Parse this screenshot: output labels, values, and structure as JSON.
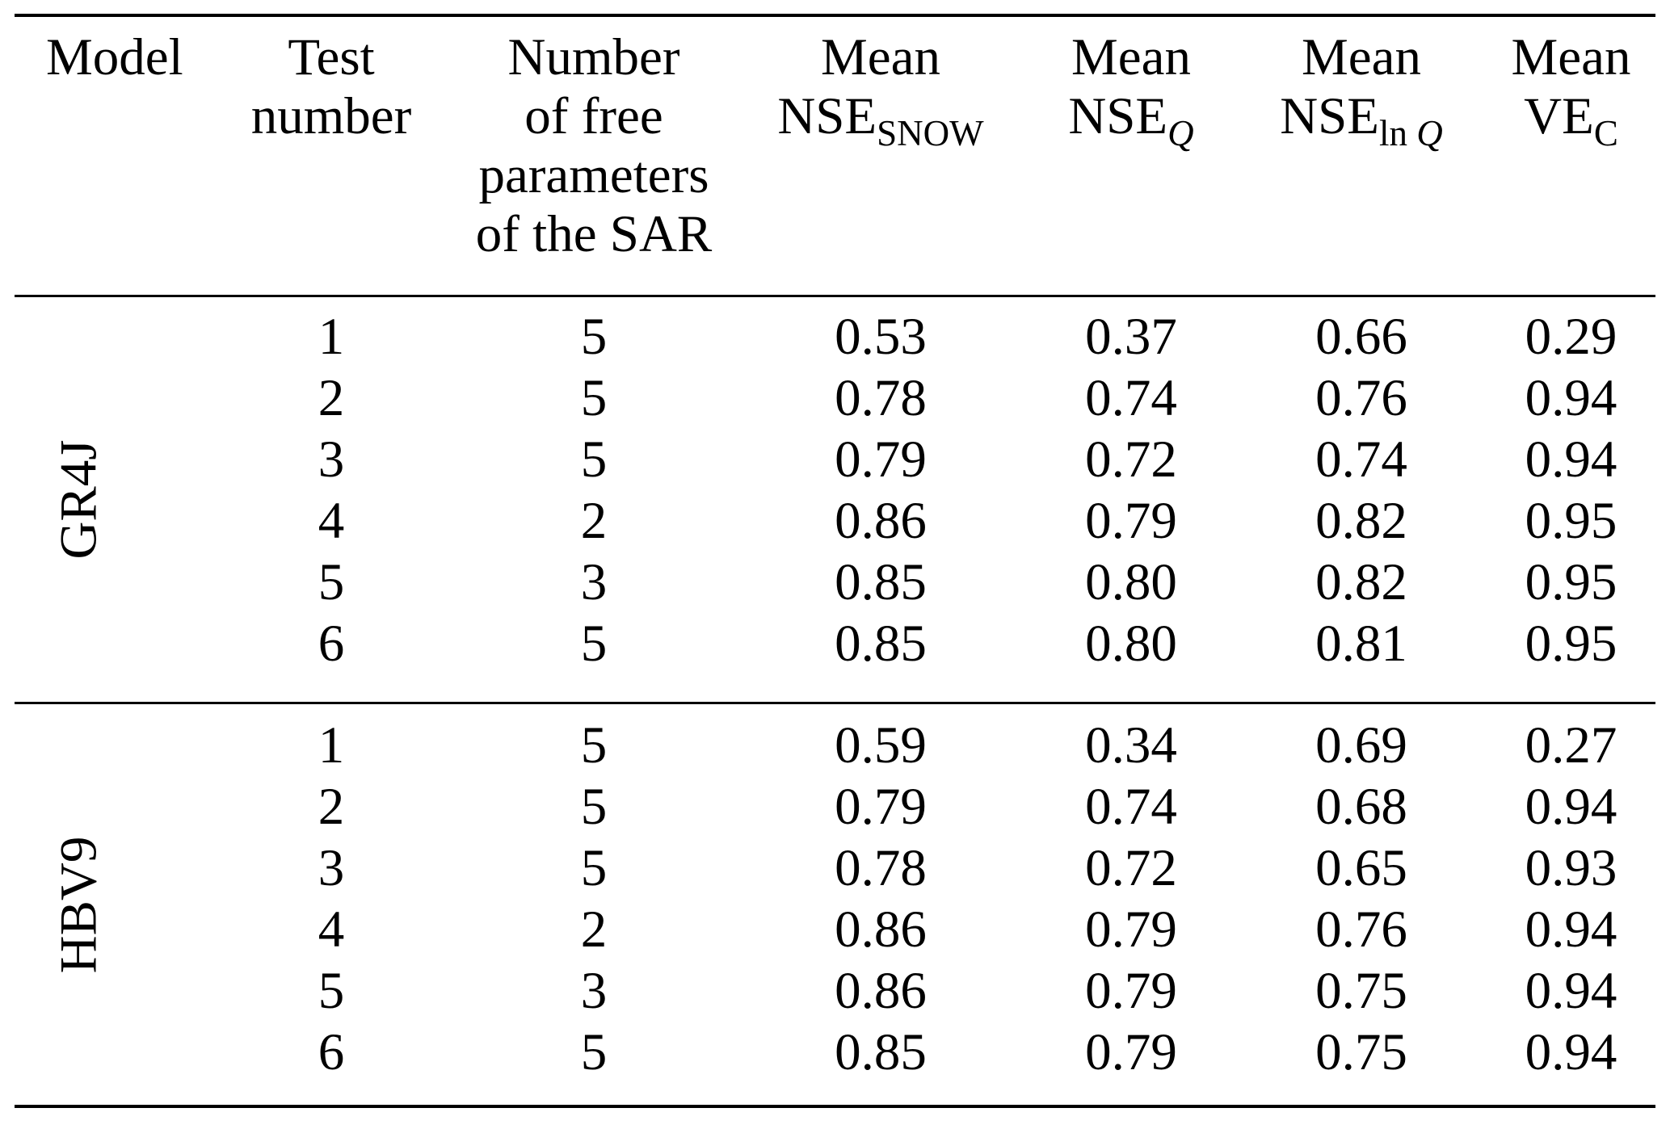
{
  "table": {
    "header": {
      "model": "Model",
      "test": {
        "line1": "Test",
        "line2": "number"
      },
      "params": {
        "line1": "Number",
        "line2": "of free",
        "line3": "parameters",
        "line4": "of the SAR"
      },
      "metrics": [
        {
          "line1": "Mean",
          "base": "NSE",
          "sub_roman": "SNOW",
          "sub_italic": ""
        },
        {
          "line1": "Mean",
          "base": "NSE",
          "sub_roman": "",
          "sub_italic": "Q"
        },
        {
          "line1": "Mean",
          "base": "NSE",
          "sub_roman": "ln ",
          "sub_italic": "Q"
        },
        {
          "line1": "Mean",
          "base": "VE",
          "sub_roman": "C",
          "sub_italic": ""
        }
      ]
    },
    "sections": [
      {
        "model": "GR4J",
        "rows": [
          {
            "test": "1",
            "params": "5",
            "nse_snow": "0.53",
            "nse_q": "0.37",
            "nse_lnq": "0.66",
            "ve": "0.29"
          },
          {
            "test": "2",
            "params": "5",
            "nse_snow": "0.78",
            "nse_q": "0.74",
            "nse_lnq": "0.76",
            "ve": "0.94"
          },
          {
            "test": "3",
            "params": "5",
            "nse_snow": "0.79",
            "nse_q": "0.72",
            "nse_lnq": "0.74",
            "ve": "0.94"
          },
          {
            "test": "4",
            "params": "2",
            "nse_snow": "0.86",
            "nse_q": "0.79",
            "nse_lnq": "0.82",
            "ve": "0.95"
          },
          {
            "test": "5",
            "params": "3",
            "nse_snow": "0.85",
            "nse_q": "0.80",
            "nse_lnq": "0.82",
            "ve": "0.95"
          },
          {
            "test": "6",
            "params": "5",
            "nse_snow": "0.85",
            "nse_q": "0.80",
            "nse_lnq": "0.81",
            "ve": "0.95"
          }
        ]
      },
      {
        "model": "HBV9",
        "rows": [
          {
            "test": "1",
            "params": "5",
            "nse_snow": "0.59",
            "nse_q": "0.34",
            "nse_lnq": "0.69",
            "ve": "0.27"
          },
          {
            "test": "2",
            "params": "5",
            "nse_snow": "0.79",
            "nse_q": "0.74",
            "nse_lnq": "0.68",
            "ve": "0.94"
          },
          {
            "test": "3",
            "params": "5",
            "nse_snow": "0.78",
            "nse_q": "0.72",
            "nse_lnq": "0.65",
            "ve": "0.93"
          },
          {
            "test": "4",
            "params": "2",
            "nse_snow": "0.86",
            "nse_q": "0.79",
            "nse_lnq": "0.76",
            "ve": "0.94"
          },
          {
            "test": "5",
            "params": "3",
            "nse_snow": "0.86",
            "nse_q": "0.79",
            "nse_lnq": "0.75",
            "ve": "0.94"
          },
          {
            "test": "6",
            "params": "5",
            "nse_snow": "0.85",
            "nse_q": "0.79",
            "nse_lnq": "0.75",
            "ve": "0.94"
          }
        ]
      }
    ]
  }
}
